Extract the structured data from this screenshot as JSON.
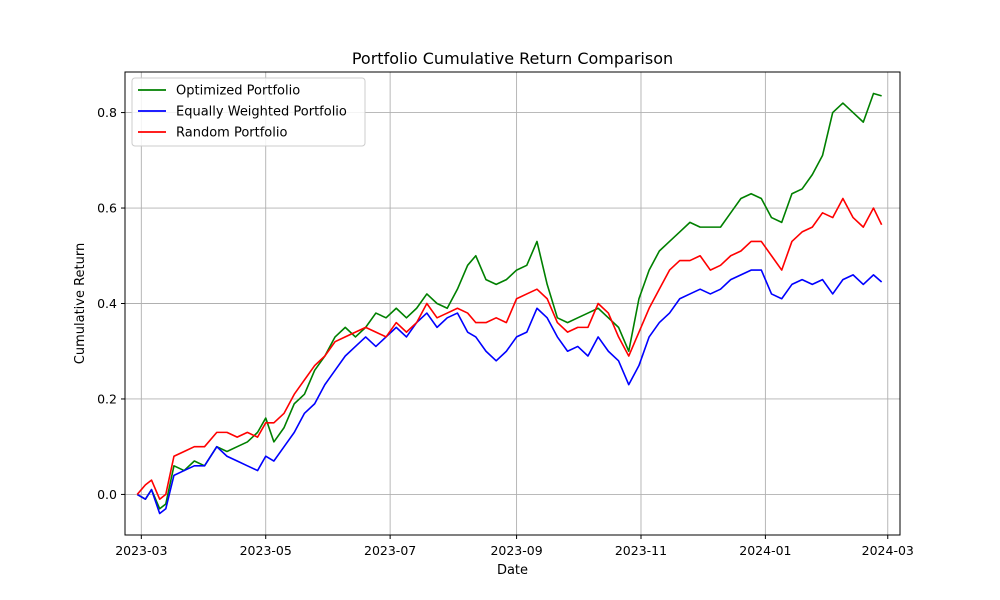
{
  "chart_data": {
    "type": "line",
    "title": "Portfolio Cumulative Return Comparison",
    "xlabel": "Date",
    "ylabel": "Cumulative Return",
    "x_range": [
      "2023-02-21",
      "2024-03-07"
    ],
    "ylim": [
      -0.085,
      0.885
    ],
    "x_ticks": [
      "2023-03-01",
      "2023-05-01",
      "2023-07-01",
      "2023-09-01",
      "2023-11-01",
      "2024-01-01",
      "2024-03-01"
    ],
    "x_tick_labels": [
      "2023-03",
      "2023-05",
      "2023-07",
      "2023-09",
      "2023-11",
      "2024-01",
      "2024-03"
    ],
    "y_ticks": [
      0.0,
      0.2,
      0.4,
      0.6,
      0.8
    ],
    "y_tick_labels": [
      "0.0",
      "0.2",
      "0.4",
      "0.6",
      "0.8"
    ],
    "grid": true,
    "legend_position": "upper-left",
    "series": [
      {
        "name": "Optimized Portfolio",
        "color": "#008000",
        "points": [
          [
            "2023-02-27",
            0.0
          ],
          [
            "2023-03-03",
            -0.01
          ],
          [
            "2023-03-06",
            0.01
          ],
          [
            "2023-03-10",
            -0.03
          ],
          [
            "2023-03-13",
            -0.02
          ],
          [
            "2023-03-17",
            0.06
          ],
          [
            "2023-03-22",
            0.05
          ],
          [
            "2023-03-27",
            0.07
          ],
          [
            "2023-04-01",
            0.06
          ],
          [
            "2023-04-07",
            0.1
          ],
          [
            "2023-04-12",
            0.09
          ],
          [
            "2023-04-17",
            0.1
          ],
          [
            "2023-04-22",
            0.11
          ],
          [
            "2023-04-27",
            0.13
          ],
          [
            "2023-05-01",
            0.16
          ],
          [
            "2023-05-05",
            0.11
          ],
          [
            "2023-05-10",
            0.14
          ],
          [
            "2023-05-15",
            0.19
          ],
          [
            "2023-05-20",
            0.21
          ],
          [
            "2023-05-25",
            0.26
          ],
          [
            "2023-05-30",
            0.29
          ],
          [
            "2023-06-04",
            0.33
          ],
          [
            "2023-06-09",
            0.35
          ],
          [
            "2023-06-14",
            0.33
          ],
          [
            "2023-06-19",
            0.35
          ],
          [
            "2023-06-24",
            0.38
          ],
          [
            "2023-06-29",
            0.37
          ],
          [
            "2023-07-04",
            0.39
          ],
          [
            "2023-07-09",
            0.37
          ],
          [
            "2023-07-14",
            0.39
          ],
          [
            "2023-07-19",
            0.42
          ],
          [
            "2023-07-24",
            0.4
          ],
          [
            "2023-07-29",
            0.39
          ],
          [
            "2023-08-03",
            0.43
          ],
          [
            "2023-08-08",
            0.48
          ],
          [
            "2023-08-12",
            0.5
          ],
          [
            "2023-08-17",
            0.45
          ],
          [
            "2023-08-22",
            0.44
          ],
          [
            "2023-08-27",
            0.45
          ],
          [
            "2023-09-01",
            0.47
          ],
          [
            "2023-09-06",
            0.48
          ],
          [
            "2023-09-11",
            0.53
          ],
          [
            "2023-09-16",
            0.44
          ],
          [
            "2023-09-21",
            0.37
          ],
          [
            "2023-09-26",
            0.36
          ],
          [
            "2023-10-01",
            0.37
          ],
          [
            "2023-10-06",
            0.38
          ],
          [
            "2023-10-11",
            0.39
          ],
          [
            "2023-10-16",
            0.37
          ],
          [
            "2023-10-21",
            0.35
          ],
          [
            "2023-10-26",
            0.3
          ],
          [
            "2023-10-31",
            0.41
          ],
          [
            "2023-11-05",
            0.47
          ],
          [
            "2023-11-10",
            0.51
          ],
          [
            "2023-11-15",
            0.53
          ],
          [
            "2023-11-20",
            0.55
          ],
          [
            "2023-11-25",
            0.57
          ],
          [
            "2023-11-30",
            0.56
          ],
          [
            "2023-12-05",
            0.56
          ],
          [
            "2023-12-10",
            0.56
          ],
          [
            "2023-12-15",
            0.59
          ],
          [
            "2023-12-20",
            0.62
          ],
          [
            "2023-12-25",
            0.63
          ],
          [
            "2023-12-30",
            0.62
          ],
          [
            "2024-01-04",
            0.58
          ],
          [
            "2024-01-09",
            0.57
          ],
          [
            "2024-01-14",
            0.63
          ],
          [
            "2024-01-19",
            0.64
          ],
          [
            "2024-01-24",
            0.67
          ],
          [
            "2024-01-29",
            0.71
          ],
          [
            "2024-02-03",
            0.8
          ],
          [
            "2024-02-08",
            0.82
          ],
          [
            "2024-02-13",
            0.8
          ],
          [
            "2024-02-18",
            0.78
          ],
          [
            "2024-02-23",
            0.84
          ],
          [
            "2024-02-27",
            0.835
          ]
        ]
      },
      {
        "name": "Equally Weighted Portfolio",
        "color": "#0000ff",
        "points": [
          [
            "2023-02-27",
            0.0
          ],
          [
            "2023-03-03",
            -0.01
          ],
          [
            "2023-03-06",
            0.01
          ],
          [
            "2023-03-10",
            -0.04
          ],
          [
            "2023-03-13",
            -0.03
          ],
          [
            "2023-03-17",
            0.04
          ],
          [
            "2023-03-22",
            0.05
          ],
          [
            "2023-03-27",
            0.06
          ],
          [
            "2023-04-01",
            0.06
          ],
          [
            "2023-04-07",
            0.1
          ],
          [
            "2023-04-12",
            0.08
          ],
          [
            "2023-04-17",
            0.07
          ],
          [
            "2023-04-22",
            0.06
          ],
          [
            "2023-04-27",
            0.05
          ],
          [
            "2023-05-01",
            0.08
          ],
          [
            "2023-05-05",
            0.07
          ],
          [
            "2023-05-10",
            0.1
          ],
          [
            "2023-05-15",
            0.13
          ],
          [
            "2023-05-20",
            0.17
          ],
          [
            "2023-05-25",
            0.19
          ],
          [
            "2023-05-30",
            0.23
          ],
          [
            "2023-06-04",
            0.26
          ],
          [
            "2023-06-09",
            0.29
          ],
          [
            "2023-06-14",
            0.31
          ],
          [
            "2023-06-19",
            0.33
          ],
          [
            "2023-06-24",
            0.31
          ],
          [
            "2023-06-29",
            0.33
          ],
          [
            "2023-07-04",
            0.35
          ],
          [
            "2023-07-09",
            0.33
          ],
          [
            "2023-07-14",
            0.36
          ],
          [
            "2023-07-19",
            0.38
          ],
          [
            "2023-07-24",
            0.35
          ],
          [
            "2023-07-29",
            0.37
          ],
          [
            "2023-08-03",
            0.38
          ],
          [
            "2023-08-08",
            0.34
          ],
          [
            "2023-08-12",
            0.33
          ],
          [
            "2023-08-17",
            0.3
          ],
          [
            "2023-08-22",
            0.28
          ],
          [
            "2023-08-27",
            0.3
          ],
          [
            "2023-09-01",
            0.33
          ],
          [
            "2023-09-06",
            0.34
          ],
          [
            "2023-09-11",
            0.39
          ],
          [
            "2023-09-16",
            0.37
          ],
          [
            "2023-09-21",
            0.33
          ],
          [
            "2023-09-26",
            0.3
          ],
          [
            "2023-10-01",
            0.31
          ],
          [
            "2023-10-06",
            0.29
          ],
          [
            "2023-10-11",
            0.33
          ],
          [
            "2023-10-16",
            0.3
          ],
          [
            "2023-10-21",
            0.28
          ],
          [
            "2023-10-26",
            0.23
          ],
          [
            "2023-10-31",
            0.27
          ],
          [
            "2023-11-05",
            0.33
          ],
          [
            "2023-11-10",
            0.36
          ],
          [
            "2023-11-15",
            0.38
          ],
          [
            "2023-11-20",
            0.41
          ],
          [
            "2023-11-25",
            0.42
          ],
          [
            "2023-11-30",
            0.43
          ],
          [
            "2023-12-05",
            0.42
          ],
          [
            "2023-12-10",
            0.43
          ],
          [
            "2023-12-15",
            0.45
          ],
          [
            "2023-12-20",
            0.46
          ],
          [
            "2023-12-25",
            0.47
          ],
          [
            "2023-12-30",
            0.47
          ],
          [
            "2024-01-04",
            0.42
          ],
          [
            "2024-01-09",
            0.41
          ],
          [
            "2024-01-14",
            0.44
          ],
          [
            "2024-01-19",
            0.45
          ],
          [
            "2024-01-24",
            0.44
          ],
          [
            "2024-01-29",
            0.45
          ],
          [
            "2024-02-03",
            0.42
          ],
          [
            "2024-02-08",
            0.45
          ],
          [
            "2024-02-13",
            0.46
          ],
          [
            "2024-02-18",
            0.44
          ],
          [
            "2024-02-23",
            0.46
          ],
          [
            "2024-02-27",
            0.445
          ]
        ]
      },
      {
        "name": "Random Portfolio",
        "color": "#ff0000",
        "points": [
          [
            "2023-02-27",
            0.0
          ],
          [
            "2023-03-03",
            0.02
          ],
          [
            "2023-03-06",
            0.03
          ],
          [
            "2023-03-10",
            -0.01
          ],
          [
            "2023-03-13",
            0.0
          ],
          [
            "2023-03-17",
            0.08
          ],
          [
            "2023-03-22",
            0.09
          ],
          [
            "2023-03-27",
            0.1
          ],
          [
            "2023-04-01",
            0.1
          ],
          [
            "2023-04-07",
            0.13
          ],
          [
            "2023-04-12",
            0.13
          ],
          [
            "2023-04-17",
            0.12
          ],
          [
            "2023-04-22",
            0.13
          ],
          [
            "2023-04-27",
            0.12
          ],
          [
            "2023-05-01",
            0.15
          ],
          [
            "2023-05-05",
            0.15
          ],
          [
            "2023-05-10",
            0.17
          ],
          [
            "2023-05-15",
            0.21
          ],
          [
            "2023-05-20",
            0.24
          ],
          [
            "2023-05-25",
            0.27
          ],
          [
            "2023-05-30",
            0.29
          ],
          [
            "2023-06-04",
            0.32
          ],
          [
            "2023-06-09",
            0.33
          ],
          [
            "2023-06-14",
            0.34
          ],
          [
            "2023-06-19",
            0.35
          ],
          [
            "2023-06-24",
            0.34
          ],
          [
            "2023-06-29",
            0.33
          ],
          [
            "2023-07-04",
            0.36
          ],
          [
            "2023-07-09",
            0.34
          ],
          [
            "2023-07-14",
            0.36
          ],
          [
            "2023-07-19",
            0.4
          ],
          [
            "2023-07-24",
            0.37
          ],
          [
            "2023-07-29",
            0.38
          ],
          [
            "2023-08-03",
            0.39
          ],
          [
            "2023-08-08",
            0.38
          ],
          [
            "2023-08-12",
            0.36
          ],
          [
            "2023-08-17",
            0.36
          ],
          [
            "2023-08-22",
            0.37
          ],
          [
            "2023-08-27",
            0.36
          ],
          [
            "2023-09-01",
            0.41
          ],
          [
            "2023-09-06",
            0.42
          ],
          [
            "2023-09-11",
            0.43
          ],
          [
            "2023-09-16",
            0.41
          ],
          [
            "2023-09-21",
            0.36
          ],
          [
            "2023-09-26",
            0.34
          ],
          [
            "2023-10-01",
            0.35
          ],
          [
            "2023-10-06",
            0.35
          ],
          [
            "2023-10-11",
            0.4
          ],
          [
            "2023-10-16",
            0.38
          ],
          [
            "2023-10-21",
            0.33
          ],
          [
            "2023-10-26",
            0.29
          ],
          [
            "2023-10-31",
            0.34
          ],
          [
            "2023-11-05",
            0.39
          ],
          [
            "2023-11-10",
            0.43
          ],
          [
            "2023-11-15",
            0.47
          ],
          [
            "2023-11-20",
            0.49
          ],
          [
            "2023-11-25",
            0.49
          ],
          [
            "2023-11-30",
            0.5
          ],
          [
            "2023-12-05",
            0.47
          ],
          [
            "2023-12-10",
            0.48
          ],
          [
            "2023-12-15",
            0.5
          ],
          [
            "2023-12-20",
            0.51
          ],
          [
            "2023-12-25",
            0.53
          ],
          [
            "2023-12-30",
            0.53
          ],
          [
            "2024-01-04",
            0.5
          ],
          [
            "2024-01-09",
            0.47
          ],
          [
            "2024-01-14",
            0.53
          ],
          [
            "2024-01-19",
            0.55
          ],
          [
            "2024-01-24",
            0.56
          ],
          [
            "2024-01-29",
            0.59
          ],
          [
            "2024-02-03",
            0.58
          ],
          [
            "2024-02-08",
            0.62
          ],
          [
            "2024-02-13",
            0.58
          ],
          [
            "2024-02-18",
            0.56
          ],
          [
            "2024-02-23",
            0.6
          ],
          [
            "2024-02-27",
            0.565
          ]
        ]
      }
    ]
  }
}
